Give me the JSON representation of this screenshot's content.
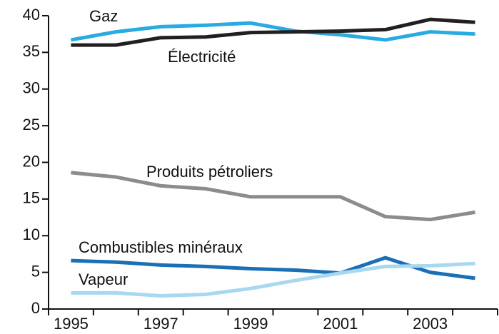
{
  "chart_data": {
    "type": "line",
    "categories": [
      "1995",
      null,
      "1997",
      null,
      "1999",
      null,
      "2001",
      null,
      "2003",
      null
    ],
    "series": [
      {
        "name": "Gaz",
        "color": "#29abe2",
        "values": [
          36.7,
          37.8,
          38.5,
          38.7,
          39.0,
          37.9,
          37.4,
          36.7,
          37.8,
          37.5
        ]
      },
      {
        "name": "Électricité",
        "color": "#231f20",
        "values": [
          36.0,
          36.0,
          37.0,
          37.1,
          37.7,
          37.8,
          37.9,
          38.1,
          39.5,
          39.1
        ]
      },
      {
        "name": "Produits pétroliers",
        "color": "#8c8c8c",
        "values": [
          18.6,
          18.0,
          16.8,
          16.4,
          15.3,
          15.3,
          15.3,
          12.6,
          12.2,
          13.2
        ]
      },
      {
        "name": "Combustibles minéraux",
        "color": "#1a6fb5",
        "values": [
          6.6,
          6.4,
          6.0,
          5.8,
          5.5,
          5.3,
          4.9,
          7.0,
          5.0,
          4.2
        ]
      },
      {
        "name": "Vapeur",
        "color": "#a8d8f0",
        "values": [
          2.2,
          2.2,
          1.8,
          2.0,
          2.8,
          3.9,
          4.9,
          5.8,
          5.9,
          6.2
        ]
      }
    ],
    "ylim": [
      0,
      40
    ],
    "yticks": [
      0,
      5,
      10,
      15,
      20,
      25,
      30,
      35,
      40
    ]
  }
}
